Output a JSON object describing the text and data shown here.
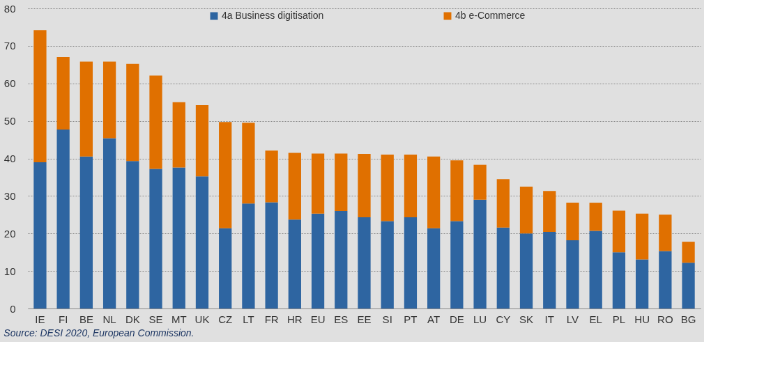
{
  "chart_data": {
    "type": "bar",
    "stacked": true,
    "categories": [
      "IE",
      "FI",
      "BE",
      "NL",
      "DK",
      "SE",
      "MT",
      "UK",
      "CZ",
      "LT",
      "FR",
      "HR",
      "EU",
      "ES",
      "EE",
      "SI",
      "PT",
      "AT",
      "DE",
      "LU",
      "CY",
      "SK",
      "IT",
      "LV",
      "EL",
      "PL",
      "HU",
      "RO",
      "BG"
    ],
    "series": [
      {
        "name": "4a Business digitisation",
        "color": "#2e65a1",
        "values": [
          39.0,
          47.7,
          40.5,
          45.4,
          39.3,
          37.2,
          37.6,
          35.2,
          21.4,
          28.0,
          28.3,
          23.7,
          25.3,
          26.0,
          24.3,
          23.3,
          24.3,
          21.4,
          23.3,
          29.0,
          21.6,
          20.0,
          20.4,
          18.2,
          20.7,
          15.0,
          13.1,
          15.3,
          12.2
        ]
      },
      {
        "name": "4b e-Commerce",
        "color": "#e07000",
        "values": [
          35.2,
          19.3,
          25.3,
          20.4,
          25.9,
          24.9,
          17.4,
          19.0,
          28.3,
          21.5,
          13.8,
          17.8,
          16.0,
          15.3,
          16.9,
          17.7,
          16.7,
          19.1,
          16.2,
          9.3,
          12.9,
          12.5,
          10.9,
          10.0,
          7.5,
          11.1,
          12.2,
          9.7,
          5.6
        ]
      }
    ],
    "ylim": [
      0,
      80
    ],
    "yticks": [
      0,
      10,
      20,
      30,
      40,
      50,
      60,
      70,
      80
    ],
    "grid": "y",
    "legend": "top",
    "annotations": [
      "Source: DESI 2020, European Commission."
    ]
  }
}
